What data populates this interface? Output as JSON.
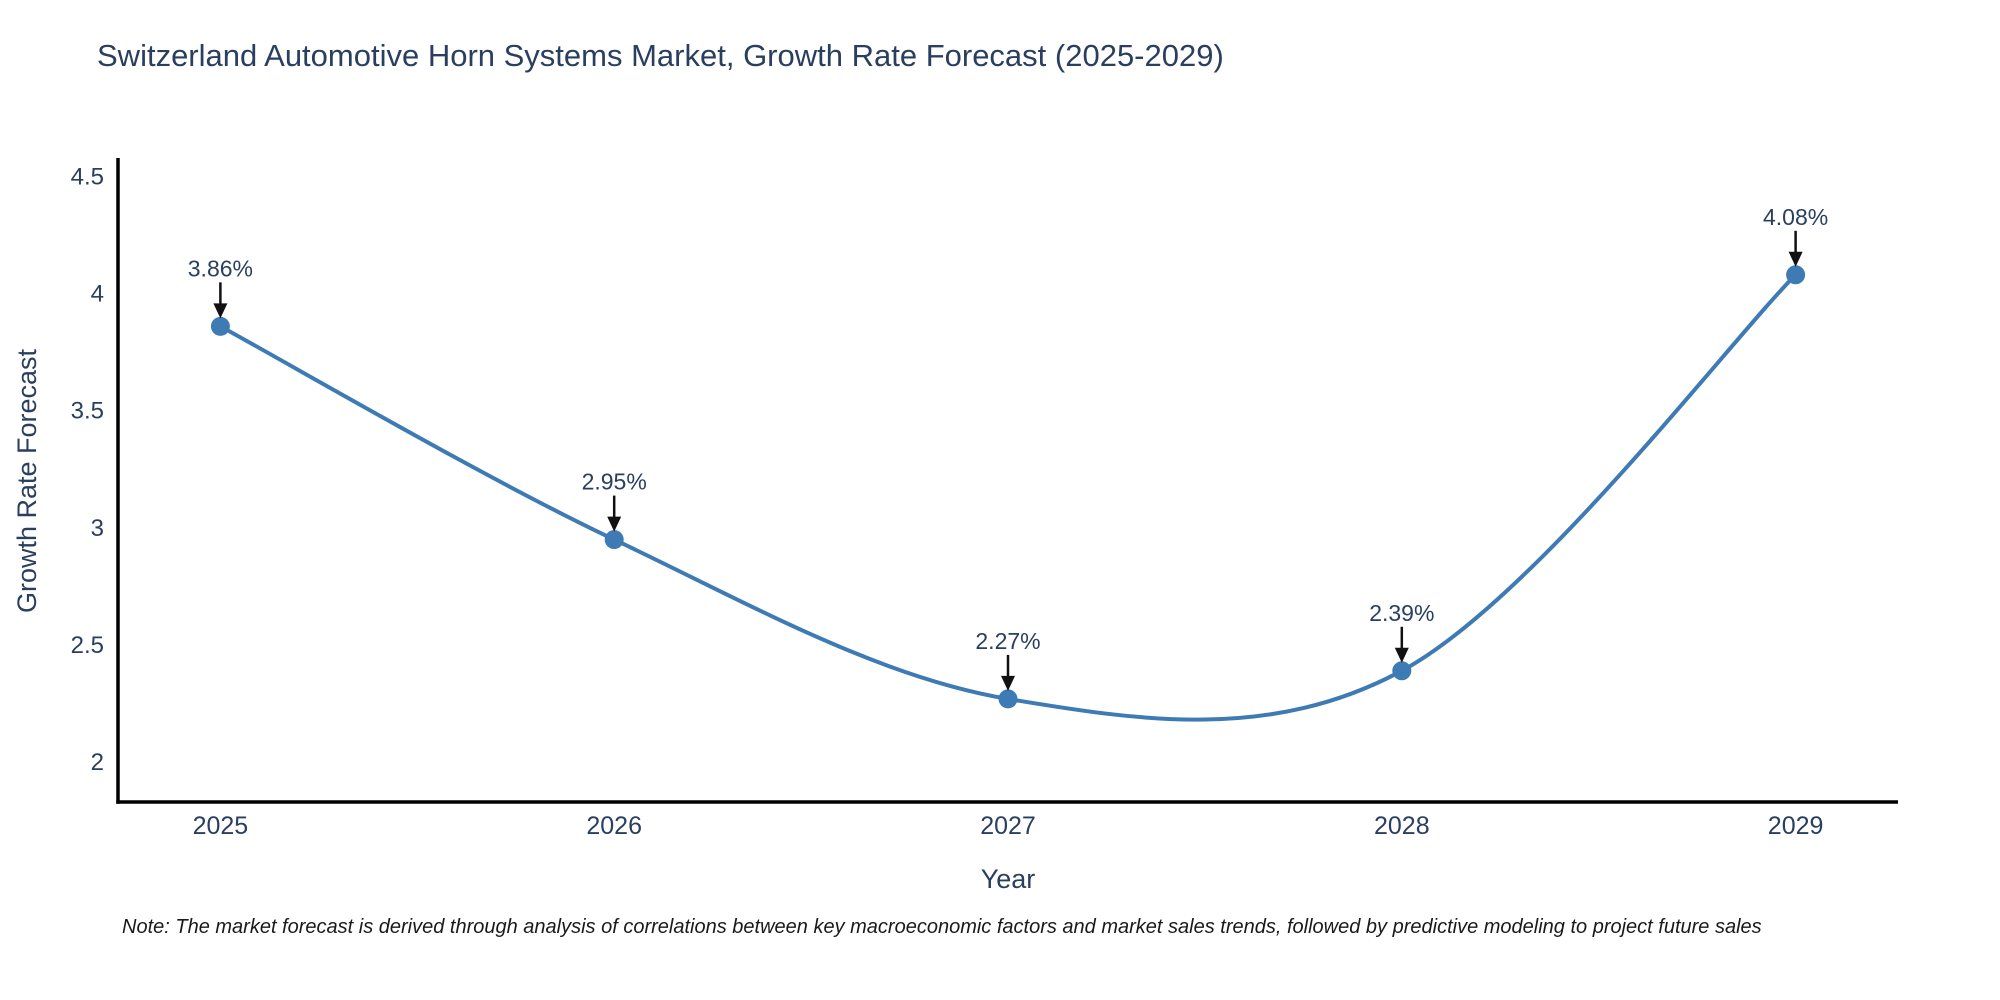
{
  "title": "Switzerland Automotive Horn Systems Market, Growth Rate Forecast (2025-2029)",
  "note": "Note: The market forecast is derived through analysis of correlations between key macroeconomic factors and market sales trends, followed by predictive modeling to project future sales",
  "chart_data": {
    "type": "line",
    "title": "Switzerland Automotive Horn Systems Market, Growth Rate Forecast (2025-2029)",
    "xlabel": "Year",
    "ylabel": "Growth Rate Forecast",
    "x": [
      2025,
      2026,
      2027,
      2028,
      2029
    ],
    "values": [
      3.86,
      2.95,
      2.27,
      2.39,
      4.08
    ],
    "point_labels": [
      "3.86%",
      "2.95%",
      "2.27%",
      "2.39%",
      "4.08%"
    ],
    "xticks": [
      "2025",
      "2026",
      "2027",
      "2028",
      "2029"
    ],
    "yticks": [
      2,
      2.5,
      3,
      3.5,
      4,
      4.5
    ],
    "ytick_labels": [
      "2",
      "2.5",
      "3",
      "3.5",
      "4",
      "4.5"
    ],
    "xlim": [
      2024.74,
      2029.26
    ],
    "ylim": [
      1.83,
      4.57
    ],
    "grid": false,
    "legend": "none",
    "line_shape": "spline",
    "line_color": "#3e7ab4",
    "marker_color": "#3e7ab4",
    "annotation_arrow_color": "#111111"
  },
  "colors": {
    "title": "#2a3f5f",
    "tick_label": "#2a3f5f",
    "axis_line": "#000000",
    "annotation_text": "#2a3f5f",
    "note_text": "#1a1a1a"
  }
}
